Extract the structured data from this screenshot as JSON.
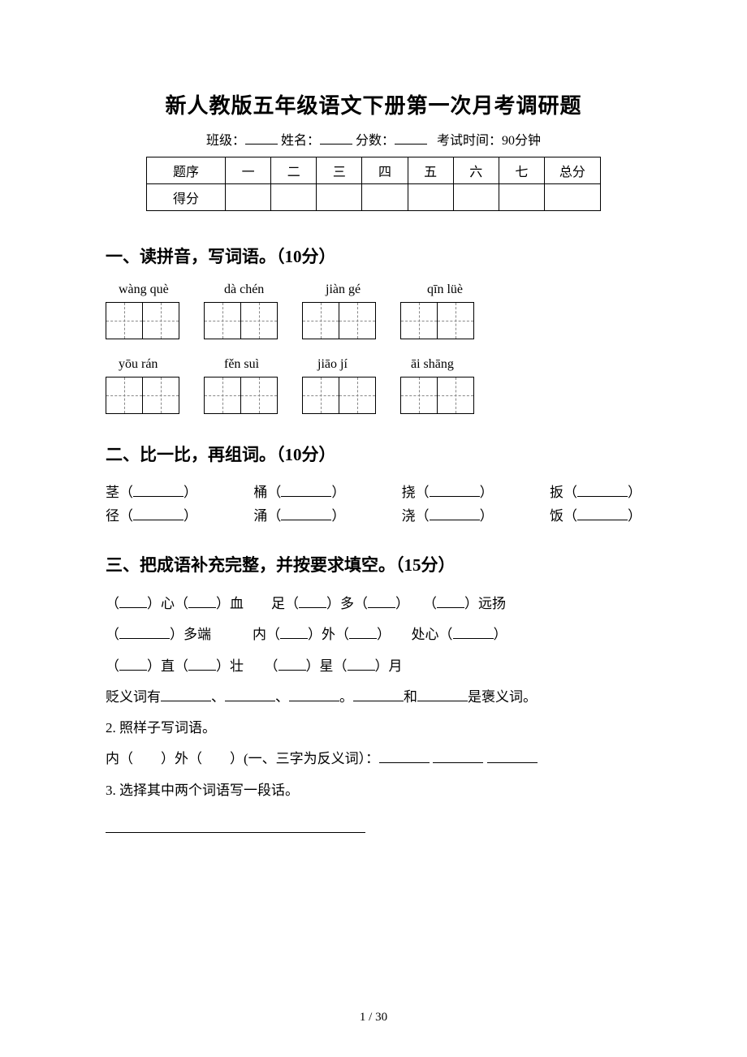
{
  "title": "新人教版五年级语文下册第一次月考调研题",
  "meta": {
    "class_label": "班级：",
    "name_label": "姓名：",
    "score_label": "分数：",
    "time_label": "考试时间：90分钟"
  },
  "score_table": {
    "row1_label": "题序",
    "row2_label": "得分",
    "cols": [
      "一",
      "二",
      "三",
      "四",
      "五",
      "六",
      "七"
    ],
    "total_label": "总分"
  },
  "s1": {
    "heading": "一、读拼音，写词语。（10分）",
    "row1_pinyin": [
      "wàng què",
      "dà chén",
      "jiàn gé",
      "qīn lüè"
    ],
    "row2_pinyin": [
      "yōu rán",
      "fěn suì",
      "jiāo jí",
      "āi shāng"
    ],
    "cells_per_word": 2,
    "grid_border_color": "#000000",
    "grid_dash_color": "#888888"
  },
  "s2": {
    "heading": "二、比一比，再组词。（10分）",
    "rows": [
      [
        "茎",
        "桶",
        "挠",
        "扳"
      ],
      [
        "径",
        "涌",
        "浇",
        "饭"
      ]
    ]
  },
  "s3": {
    "heading": "三、把成语补充完整，并按要求填空。（15分）",
    "lines": [
      "（____）心（____）血　　足（____）多（____）　　（____）远扬",
      "（_______）多端　　　内（____）外（____）　　处心（______）",
      "（____）直（____）壮　　（____）星（____）月"
    ],
    "extra1": "贬义词有_______、_______、_______。_______和_______是褒义词。",
    "sub2_label": "2. 照样子写词语。",
    "sub2_line": "内（　　）外（　　）(一、三字为反义词）：_______  _______  _______",
    "sub3_label": "3. 选择其中两个词语写一段话。"
  },
  "page_num": "1 / 30",
  "colors": {
    "text": "#000000",
    "background": "#ffffff"
  },
  "fonts": {
    "title_size_pt": 20,
    "section_head_size_pt": 16,
    "body_size_pt": 12
  }
}
